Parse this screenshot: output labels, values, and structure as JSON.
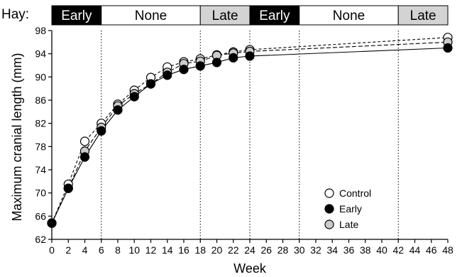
{
  "chart_data": {
    "type": "line",
    "xlabel": "Week",
    "ylabel": "Maximum cranial length (mm)",
    "xlim": [
      0,
      48
    ],
    "ylim": [
      62,
      98
    ],
    "xticks": [
      0,
      2,
      4,
      6,
      8,
      10,
      12,
      14,
      16,
      18,
      20,
      22,
      24,
      26,
      28,
      30,
      32,
      34,
      36,
      38,
      40,
      42,
      44,
      46,
      48
    ],
    "yticks": [
      62,
      66,
      70,
      74,
      78,
      82,
      86,
      90,
      94,
      98
    ],
    "vlines": [
      6,
      18,
      24,
      30,
      42
    ],
    "hay": {
      "label": "Hay:",
      "segments": [
        {
          "label": "Early",
          "start": 0,
          "end": 6,
          "fill": "#000000",
          "text_color": "#ffffff"
        },
        {
          "label": "None",
          "start": 6,
          "end": 18,
          "fill": "#ffffff",
          "text_color": "#000000"
        },
        {
          "label": "Late",
          "start": 18,
          "end": 24,
          "fill": "#d3d3d3",
          "text_color": "#000000"
        },
        {
          "label": "Early",
          "start": 24,
          "end": 30,
          "fill": "#000000",
          "text_color": "#ffffff"
        },
        {
          "label": "None",
          "start": 30,
          "end": 42,
          "fill": "#ffffff",
          "text_color": "#000000"
        },
        {
          "label": "Late",
          "start": 42,
          "end": 48,
          "fill": "#d3d3d3",
          "text_color": "#000000"
        }
      ]
    },
    "legend": "bottom-right",
    "x": [
      0,
      2,
      4,
      6,
      8,
      10,
      12,
      14,
      16,
      18,
      20,
      22,
      24,
      48
    ],
    "series": [
      {
        "name": "Control",
        "fill": "#ffffff",
        "dash": "4,3",
        "values": [
          64.8,
          71.5,
          78.9,
          82.0,
          85.3,
          87.7,
          89.9,
          91.7,
          92.6,
          93.1,
          93.8,
          94.3,
          94.7,
          96.8
        ]
      },
      {
        "name": "Early",
        "fill": "#000000",
        "dash": "",
        "values": [
          64.8,
          70.8,
          76.2,
          80.7,
          84.3,
          86.6,
          88.8,
          90.3,
          91.3,
          91.9,
          92.5,
          93.3,
          93.6,
          95.0
        ]
      },
      {
        "name": "Late",
        "fill": "#cccccc",
        "dash": "6,3",
        "values": [
          64.8,
          70.8,
          77.2,
          81.3,
          85.0,
          87.1,
          88.8,
          90.8,
          92.3,
          92.7,
          93.7,
          94.1,
          94.4,
          96.0
        ]
      }
    ]
  }
}
